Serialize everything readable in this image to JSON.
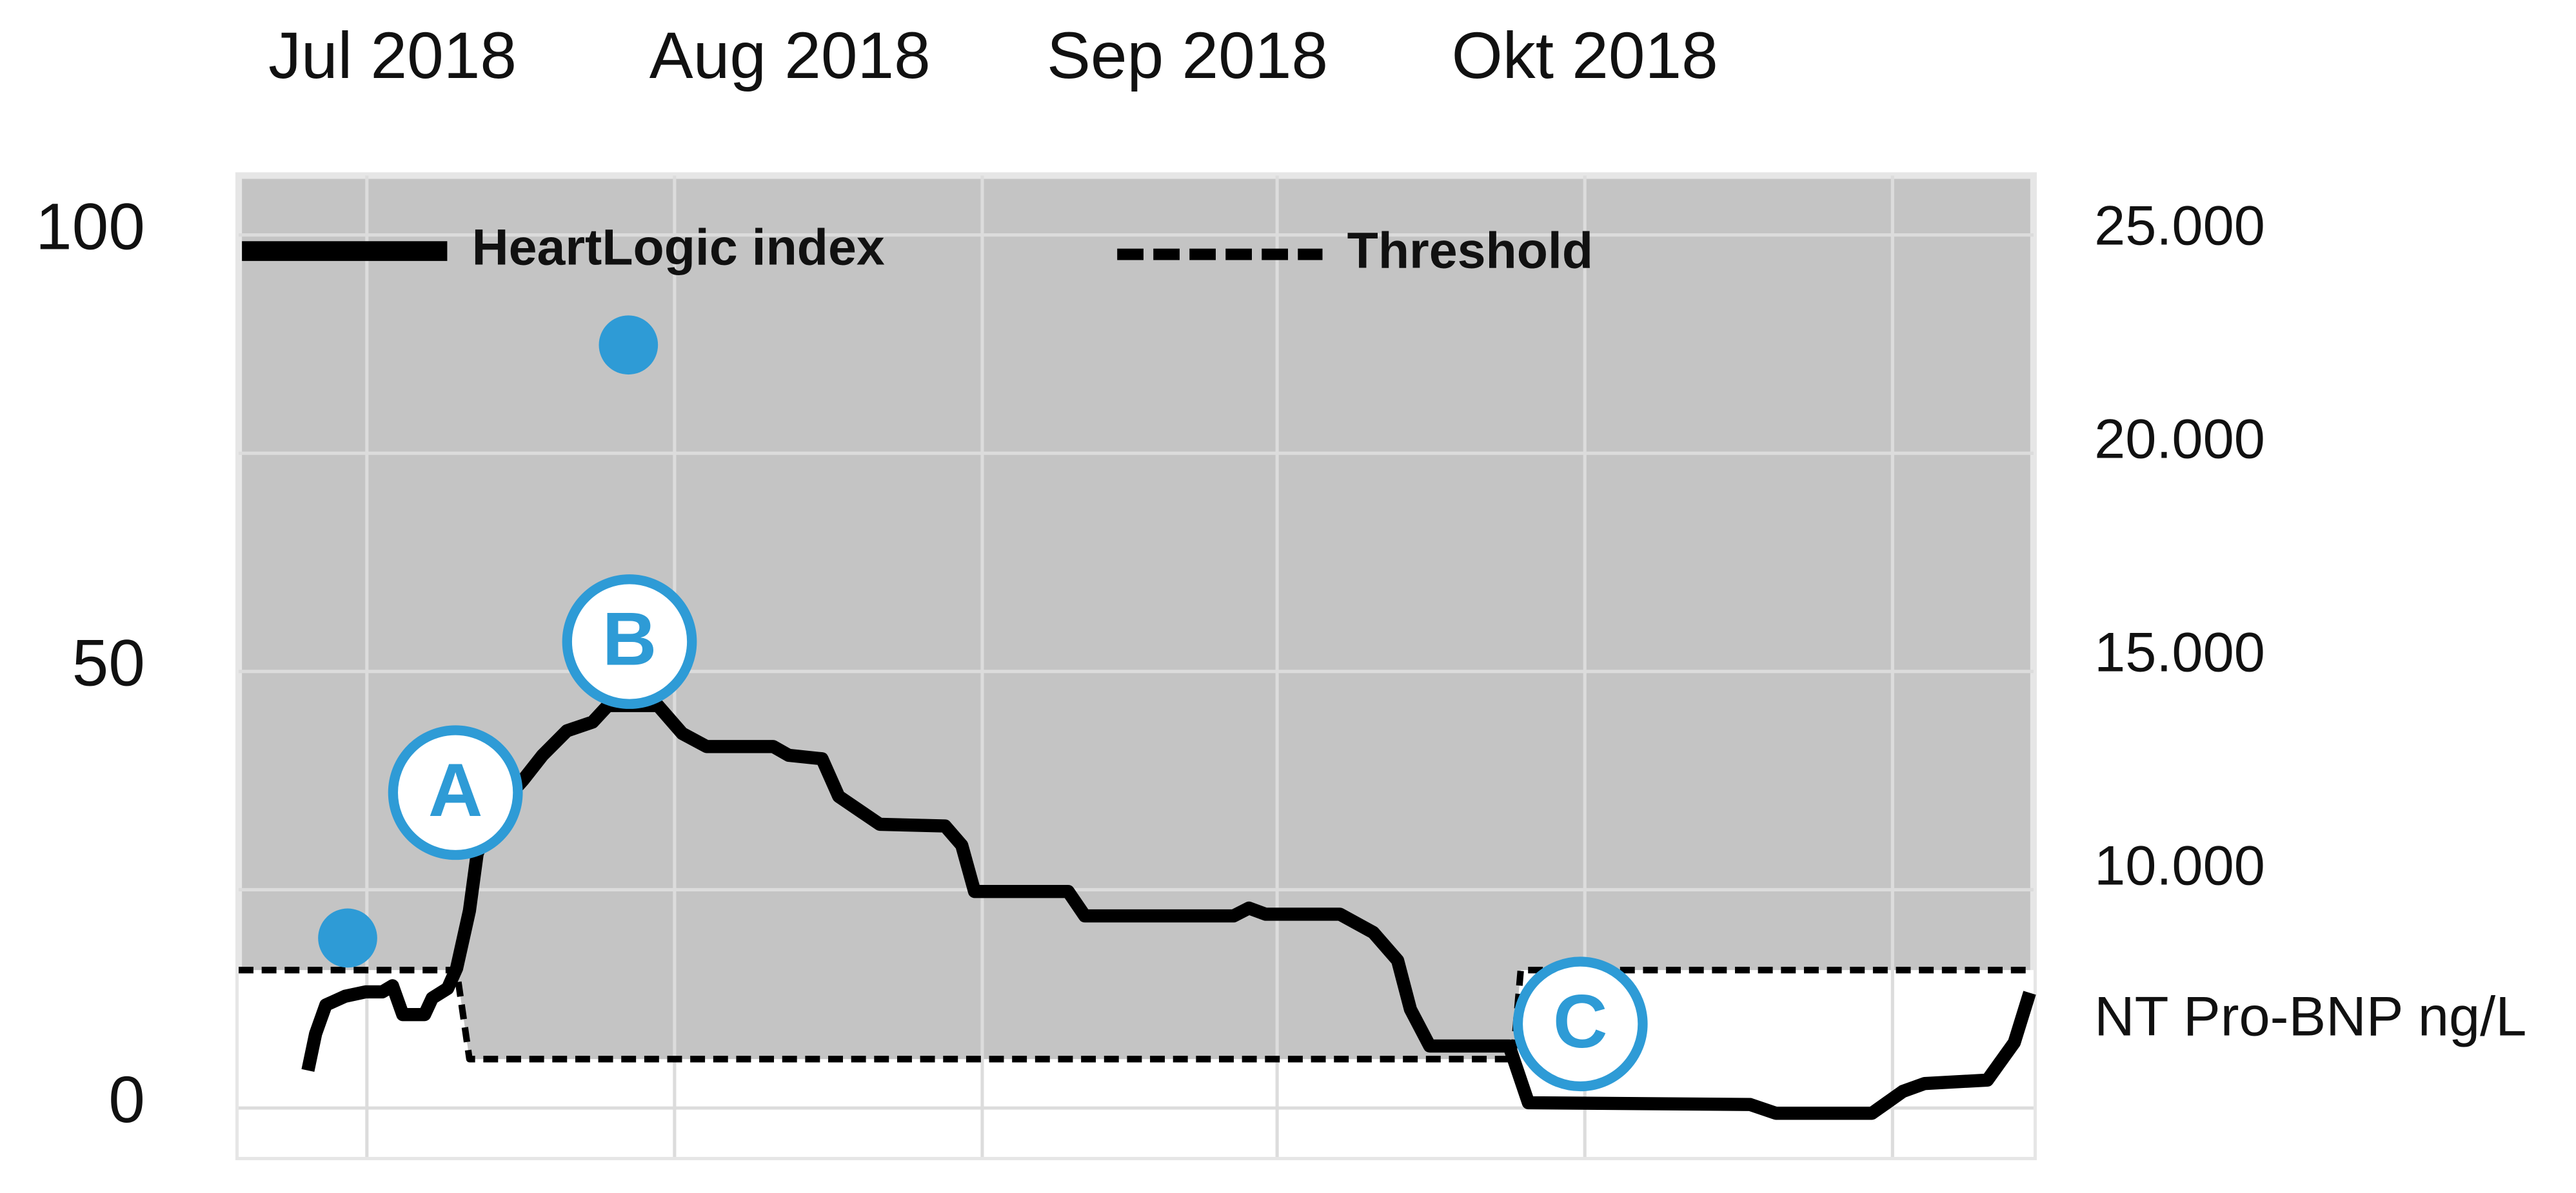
{
  "chart_data": {
    "type": "line",
    "xticks": [
      {
        "value": 12,
        "label": "Jul 2018"
      },
      {
        "value": 43,
        "label": "Aug 2018"
      },
      {
        "value": 74,
        "label": "Sep 2018"
      },
      {
        "value": 105,
        "label": "Okt 2018"
      }
    ],
    "xlim": [
      0,
      140
    ],
    "x_grid": [
      10,
      34,
      58,
      81,
      105,
      129
    ],
    "ylim": [
      -5.6,
      106.8
    ],
    "yticks": [
      0,
      50,
      100
    ],
    "y_grid": [
      0,
      25,
      50,
      75,
      100
    ],
    "y2lim": [
      3270,
      26270
    ],
    "y2ticks": [
      {
        "value": 25000,
        "label": "25.000"
      },
      {
        "value": 20000,
        "label": "20.000"
      },
      {
        "value": 15000,
        "label": "15.000"
      },
      {
        "value": 10000,
        "label": "10.000"
      }
    ],
    "y2_label": "NT Pro-BNP ng/L",
    "grid": true,
    "series": [
      {
        "name": "HeartLogic index",
        "type": "line",
        "color": "#000000",
        "dash": false,
        "x": [
          5.4,
          6,
          6.8,
          8.3,
          9.9,
          11.2,
          12,
          12.8,
          14.5,
          15.1,
          16.3,
          17,
          18,
          18.6,
          19.9,
          22.2,
          23.7,
          25.6,
          27.6,
          28.8,
          32.7,
          34.6,
          36.5,
          41.7,
          42.9,
          45.5,
          46.8,
          48.7,
          50,
          55.1,
          56.4,
          57.4,
          64.7,
          66,
          77.6,
          78.8,
          80.1,
          85.9,
          88.5,
          90.4,
          91.4,
          92.9,
          99.1,
          100.6,
          117.9,
          119.9,
          127.4,
          129.8,
          131.5,
          136.4,
          138.5,
          139.7
        ],
        "values": [
          4.3,
          8.5,
          11.8,
          12.8,
          13.3,
          13.3,
          14,
          10.7,
          10.7,
          12.6,
          13.7,
          16,
          22.6,
          29.1,
          33.8,
          37.6,
          40.4,
          43.2,
          44.2,
          46.1,
          46.1,
          42.9,
          41.4,
          41.4,
          40.4,
          40,
          35.7,
          33.8,
          32.5,
          32.3,
          30.1,
          24.8,
          24.8,
          22,
          22,
          22.9,
          22.2,
          22.2,
          20.1,
          16.9,
          11.3,
          7.1,
          7.1,
          0.6,
          0.4,
          -0.6,
          -0.6,
          1.9,
          2.8,
          3.2,
          7.5,
          13.2
        ]
      },
      {
        "name": "Threshold",
        "type": "line",
        "color": "#000000",
        "dash": true,
        "fill_below": "#ffffff",
        "x": [
          0,
          17,
          18,
          99.4,
          100,
          140
        ],
        "values": [
          15.8,
          15.8,
          5.6,
          5.6,
          15.8,
          15.8
        ]
      },
      {
        "type": "scatter",
        "axis": "y2",
        "color": "#2e9bd6",
        "x": [
          8.5,
          30.4
        ],
        "values": [
          8400,
          22300
        ]
      }
    ],
    "annotations": [
      "A",
      "B",
      "C"
    ],
    "background": "#c4c4c4"
  }
}
